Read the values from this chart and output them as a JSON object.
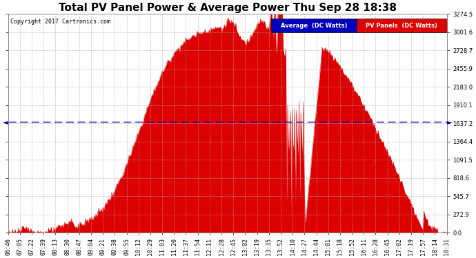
{
  "title": "Total PV Panel Power & Average Power Thu Sep 28 18:38",
  "copyright": "Copyright 2017 Cartronics.com",
  "average_value": 1661.63,
  "legend_avg_label": "Average  (DC Watts)",
  "legend_pv_label": "PV Panels  (DC Watts)",
  "avg_color": "#0000bb",
  "pv_color": "#dd0000",
  "bg_color": "#ffffff",
  "grid_color": "#aaaaaa",
  "y_ticks": [
    0.0,
    272.9,
    545.7,
    818.6,
    1091.5,
    1364.4,
    1637.2,
    1910.1,
    2183.0,
    2455.9,
    2728.7,
    3001.6,
    3274.5
  ],
  "x_labels": [
    "06:46",
    "07:05",
    "07:22",
    "07:39",
    "08:13",
    "08:30",
    "08:47",
    "09:04",
    "09:21",
    "09:38",
    "09:55",
    "10:12",
    "10:29",
    "11:03",
    "11:20",
    "11:37",
    "11:54",
    "12:11",
    "12:28",
    "12:45",
    "13:02",
    "13:19",
    "13:35",
    "13:52",
    "14:10",
    "14:27",
    "14:44",
    "15:01",
    "15:18",
    "15:52",
    "16:11",
    "16:28",
    "16:45",
    "17:02",
    "17:19",
    "17:57",
    "18:14",
    "18:31"
  ],
  "figsize": [
    6.9,
    3.75
  ],
  "dpi": 100,
  "title_fontsize": 11,
  "tick_fontsize": 6,
  "copyright_fontsize": 6
}
